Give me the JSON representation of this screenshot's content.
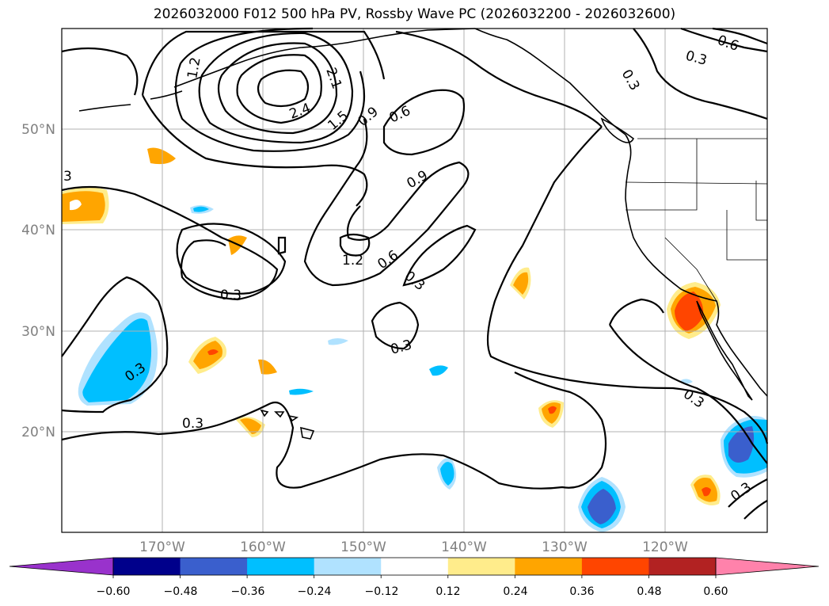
{
  "title": "2026032000 F012 500 hPa PV, Rossby Wave PC (2026032200 - 2026032600)",
  "lat_labels": [
    "50°N",
    "40°N",
    "30°N",
    "20°N"
  ],
  "lon_labels": [
    "170°W",
    "160°W",
    "150°W",
    "140°W",
    "130°W",
    "120°W"
  ],
  "contour_labels": [
    "1.2",
    "2.1",
    "2.4",
    "1.5",
    "0.9",
    "0.6",
    "0.6",
    "0.3",
    "0.3",
    "3",
    "0.9",
    "1.2",
    "0.6",
    "0.3",
    "0.3",
    "0.3",
    "0.3",
    "0.3",
    "0.3",
    "0.3"
  ],
  "colorbar": {
    "ticks": [
      "−0.60",
      "−0.48",
      "−0.36",
      "−0.24",
      "−0.12",
      "0.12",
      "0.24",
      "0.36",
      "0.48",
      "0.60"
    ],
    "colors": [
      "#9932cc",
      "#00008b",
      "#3a5fcd",
      "#00bfff",
      "#b0e2ff",
      "#ffffff",
      "#ffec8b",
      "#ffa500",
      "#ff4500",
      "#b22222",
      "#ff82ab"
    ]
  },
  "shading_colors": {
    "neg_light": "#b0e2ff",
    "neg_mid": "#00bfff",
    "neg_strong": "#3a5fcd",
    "pos_light": "#ffec8b",
    "pos_mid": "#ffa500",
    "pos_strong": "#ff4500"
  }
}
